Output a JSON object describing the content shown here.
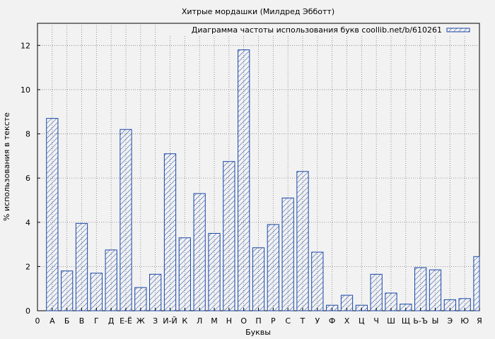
{
  "chart_data": {
    "type": "bar",
    "title": "Хитрые мордашки (Милдред Эбботт)",
    "xlabel": "Буквы",
    "ylabel": "% использования в тексте",
    "legend": {
      "label": "Диаграмма частоты использования букв coollib.net/b/610261",
      "placement": "top-right"
    },
    "x_tick_labels": [
      "0",
      "А",
      "Б",
      "В",
      "Г",
      "Д",
      "Е-Ё",
      "Ж",
      "З",
      "И-Й",
      "К",
      "Л",
      "М",
      "Н",
      "О",
      "П",
      "Р",
      "С",
      "Т",
      "У",
      "Ф",
      "Х",
      "Ц",
      "Ч",
      "Ш",
      "Щ",
      "Ь-Ъ",
      "Ы",
      "Э",
      "Ю",
      "Я"
    ],
    "categories": [
      "А",
      "Б",
      "В",
      "Г",
      "Д",
      "Е-Ё",
      "Ж",
      "З",
      "И-Й",
      "К",
      "Л",
      "М",
      "Н",
      "О",
      "П",
      "Р",
      "С",
      "Т",
      "У",
      "Ф",
      "Х",
      "Ц",
      "Ч",
      "Ш",
      "Щ",
      "Ь-Ъ",
      "Ы",
      "Э",
      "Ю",
      "Я"
    ],
    "values": [
      8.7,
      1.8,
      3.95,
      1.7,
      2.75,
      8.2,
      1.05,
      1.65,
      7.1,
      3.3,
      5.3,
      3.5,
      6.75,
      11.8,
      2.85,
      3.9,
      5.1,
      6.3,
      2.65,
      0.25,
      0.7,
      0.25,
      1.65,
      0.8,
      0.3,
      1.95,
      1.85,
      0.5,
      0.55,
      2.45
    ],
    "ylim": [
      0,
      13
    ],
    "y_ticks": [
      0,
      2,
      4,
      6,
      8,
      10,
      12
    ],
    "grid": true,
    "bar_color": "#1a47a6",
    "background": "#f2f2f2"
  }
}
